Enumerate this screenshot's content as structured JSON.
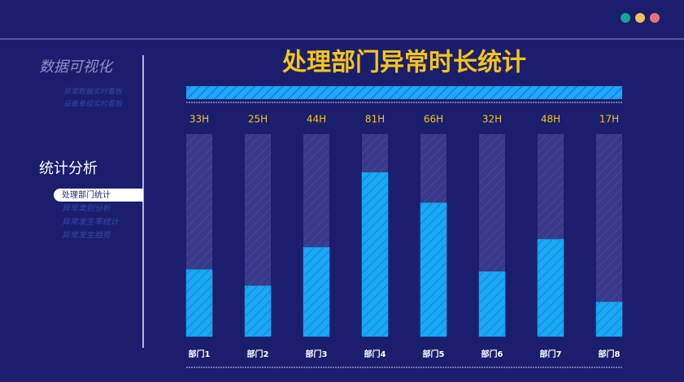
{
  "sidebar": {
    "title": "数据可视化",
    "subitems": [
      "异常数据实时看板",
      "设备单组实时看板"
    ],
    "section": "统计分析",
    "menu": [
      "处理部门统计",
      "异常类别分析",
      "异常发生率统计",
      "异常发生趋势"
    ],
    "active": 0
  },
  "chart_data": {
    "type": "bar",
    "title": "处理部门异常时长统计",
    "categories": [
      "部门1",
      "部门2",
      "部门3",
      "部门4",
      "部门5",
      "部门6",
      "部门7",
      "部门8"
    ],
    "values": [
      33,
      25,
      44,
      81,
      66,
      32,
      48,
      17
    ],
    "value_labels": [
      "33H",
      "25H",
      "44H",
      "81H",
      "66H",
      "32H",
      "48H",
      "17H"
    ],
    "color": "#18a8f5",
    "track_color": "#3b3e8c",
    "ylim": [
      0,
      100
    ]
  }
}
